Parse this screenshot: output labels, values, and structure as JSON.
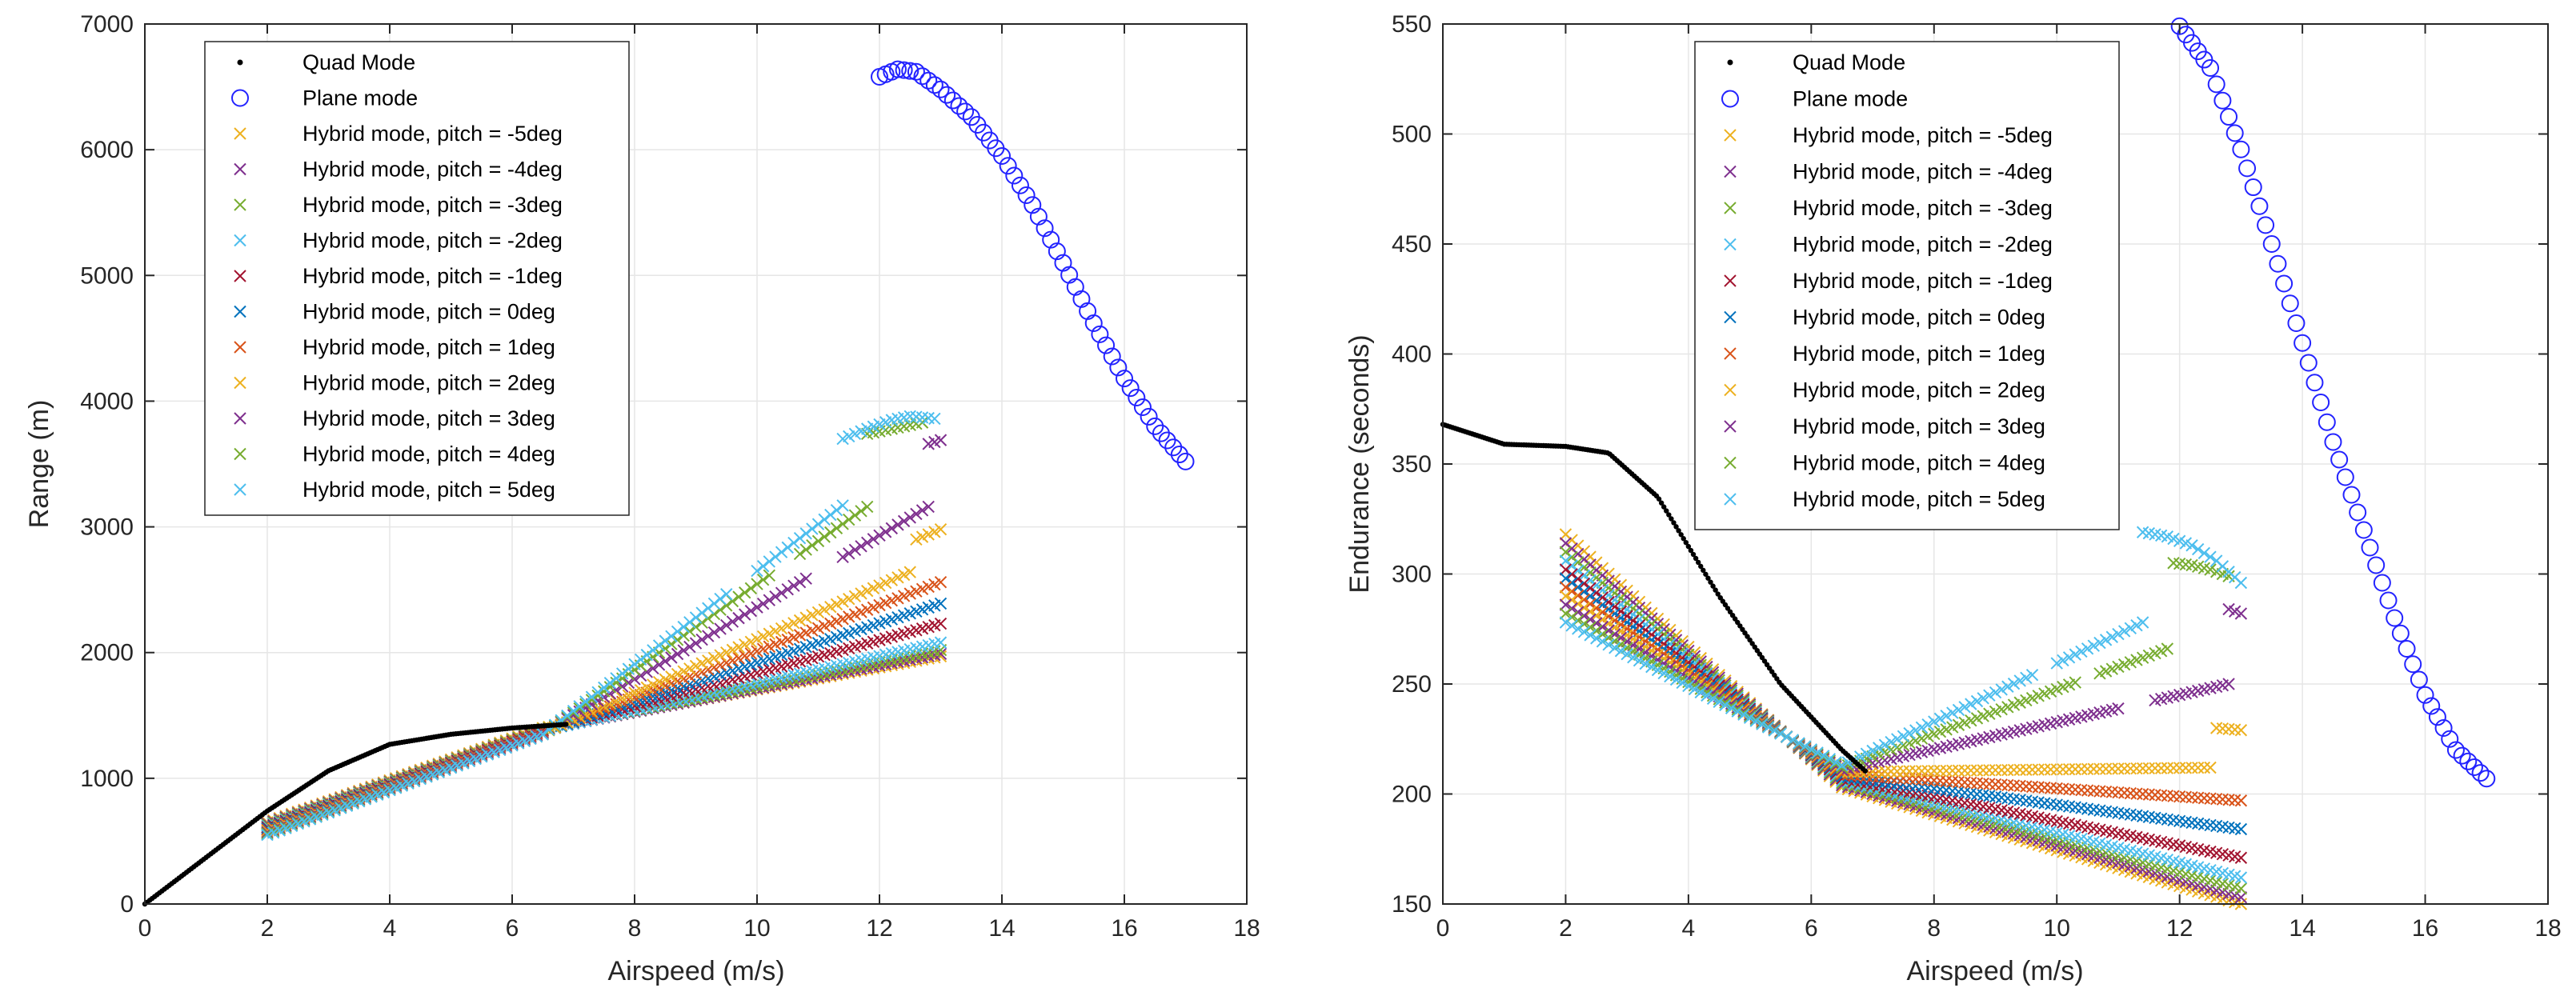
{
  "colors": {
    "quad": "#000000",
    "plane": "#2323ff",
    "pitch": {
      "-5": "#EDB120",
      "-4": "#7E2F8E",
      "-3": "#77AC30",
      "-2": "#4DBEEE",
      "-1": "#A2142F",
      "0": "#0072BD",
      "1": "#D95319",
      "2": "#EDB120",
      "3": "#7E2F8E",
      "4": "#77AC30",
      "5": "#4DBEEE"
    }
  },
  "chart_data": [
    {
      "type": "scatter",
      "xlabel": "Airspeed (m/s)",
      "ylabel": "Range (m)",
      "xlim": [
        0,
        18
      ],
      "ylim": [
        0,
        7000
      ],
      "xticks": [
        "0",
        "2",
        "4",
        "6",
        "8",
        "10",
        "12",
        "14",
        "16",
        "18"
      ],
      "yticks": [
        "0",
        "1000",
        "2000",
        "3000",
        "4000",
        "5000",
        "6000",
        "7000"
      ],
      "grid": true,
      "legend": [
        "Quad Mode",
        "Plane mode",
        "Hybrid mode, pitch = -5deg",
        "Hybrid mode, pitch = -4deg",
        "Hybrid mode, pitch = -3deg",
        "Hybrid mode, pitch = -2deg",
        "Hybrid mode, pitch = -1deg",
        "Hybrid mode, pitch = 0deg",
        "Hybrid mode, pitch = 1deg",
        "Hybrid mode, pitch = 2deg",
        "Hybrid mode, pitch = 3deg",
        "Hybrid mode, pitch = 4deg",
        "Hybrid mode, pitch = 5deg"
      ],
      "legend_position": "top-left",
      "quad_mode": {
        "x": [
          0,
          1,
          2,
          3,
          4,
          5,
          6,
          6.9
        ],
        "y": [
          0,
          370,
          740,
          1060,
          1270,
          1350,
          1400,
          1430
        ]
      },
      "plane_mode": {
        "x": [
          12,
          12.3,
          12.6,
          13,
          13.5,
          14,
          14.5,
          15,
          15.5,
          16,
          16.5,
          17
        ],
        "y": [
          6580,
          6640,
          6620,
          6480,
          6260,
          5950,
          5560,
          5100,
          4620,
          4180,
          3800,
          3520
        ]
      },
      "hybrid": [
        {
          "pitch": -5,
          "x0": 2,
          "y0": 650,
          "y_at_6_5": 1400,
          "x_end": 13,
          "y_end": 1970
        },
        {
          "pitch": -4,
          "x0": 2,
          "y0": 640,
          "y_at_6_5": 1390,
          "x_end": 13,
          "y_end": 1990
        },
        {
          "pitch": -3,
          "x0": 2,
          "y0": 630,
          "y_at_6_5": 1390,
          "x_end": 13,
          "y_end": 2020
        },
        {
          "pitch": -2,
          "x0": 2,
          "y0": 620,
          "y_at_6_5": 1380,
          "x_end": 13,
          "y_end": 2080
        },
        {
          "pitch": -1,
          "x0": 2,
          "y0": 610,
          "y_at_6_5": 1380,
          "x_end": 13,
          "y_end": 2230
        },
        {
          "pitch": 0,
          "x0": 2,
          "y0": 600,
          "y_at_6_5": 1370,
          "x_end": 13,
          "y_end": 2390
        },
        {
          "pitch": 1,
          "x0": 2,
          "y0": 590,
          "y_at_6_5": 1370,
          "x_end": 13,
          "y_end": 2560
        },
        {
          "pitch": 2,
          "x0": 2,
          "y0": 580,
          "y_at_6_5": 1360,
          "x_end": 12.5,
          "y_end": 2640,
          "tail": {
            "x": [
              12.6,
              13
            ],
            "y": [
              2900,
              2980
            ]
          }
        },
        {
          "pitch": 3,
          "x0": 2,
          "y0": 570,
          "y_at_6_5": 1360,
          "x_end": 12.8,
          "y_end": 3160,
          "gap": [
            10.8,
            11.3
          ],
          "tail": {
            "x": [
              12.8,
              13
            ],
            "y": [
              3660,
              3690
            ]
          }
        },
        {
          "pitch": 4,
          "x0": 2,
          "y0": 560,
          "y_at_6_5": 1350,
          "x_end": 11.8,
          "y_end": 3160,
          "gap": [
            10.2,
            10.6
          ],
          "tail": {
            "x": [
              11.8,
              12.1,
              12.4,
              12.7
            ],
            "y": [
              3740,
              3770,
              3800,
              3830
            ]
          }
        },
        {
          "pitch": 5,
          "x0": 2,
          "y0": 550,
          "y_at_6_5": 1350,
          "x_end": 11.4,
          "y_end": 3170,
          "gap": [
            9.5,
            9.9
          ],
          "tail": {
            "x": [
              11.4,
              11.8,
              12.2,
              12.5,
              12.9
            ],
            "y": [
              3700,
              3780,
              3850,
              3880,
              3860
            ]
          }
        }
      ]
    },
    {
      "type": "scatter",
      "xlabel": "Airspeed (m/s)",
      "ylabel": "Endurance (seconds)",
      "xlim": [
        0,
        18
      ],
      "ylim": [
        150,
        550
      ],
      "xticks": [
        "0",
        "2",
        "4",
        "6",
        "8",
        "10",
        "12",
        "14",
        "16",
        "18"
      ],
      "yticks": [
        "150",
        "200",
        "250",
        "300",
        "350",
        "400",
        "450",
        "500",
        "550"
      ],
      "grid": true,
      "legend": [
        "Quad Mode",
        "Plane mode",
        "Hybrid mode, pitch = -5deg",
        "Hybrid mode, pitch = -4deg",
        "Hybrid mode, pitch = -3deg",
        "Hybrid mode, pitch = -2deg",
        "Hybrid mode, pitch = -1deg",
        "Hybrid mode, pitch = 0deg",
        "Hybrid mode, pitch = 1deg",
        "Hybrid mode, pitch = 2deg",
        "Hybrid mode, pitch = 3deg",
        "Hybrid mode, pitch = 4deg",
        "Hybrid mode, pitch = 5deg"
      ],
      "legend_position": "top-center",
      "quad_mode": {
        "x": [
          0,
          1,
          2,
          2.7,
          3.5,
          4.5,
          5.5,
          6.5,
          6.9
        ],
        "y": [
          368,
          359,
          358,
          355,
          335,
          290,
          250,
          220,
          210
        ]
      },
      "plane_mode": {
        "x": [
          12,
          12.5,
          13,
          13.5,
          14,
          14.5,
          15,
          15.5,
          16,
          16.5,
          17
        ],
        "y": [
          549,
          530,
          493,
          450,
          405,
          360,
          320,
          280,
          245,
          220,
          207
        ]
      },
      "hybrid": [
        {
          "pitch": -5,
          "x0": 2,
          "y0": 318,
          "y_at_6_5": 203,
          "x_end": 13,
          "y_end": 150
        },
        {
          "pitch": -4,
          "x0": 2,
          "y0": 314,
          "y_at_6_5": 204,
          "x_end": 13,
          "y_end": 153
        },
        {
          "pitch": -3,
          "x0": 2,
          "y0": 310,
          "y_at_6_5": 205,
          "x_end": 13,
          "y_end": 157
        },
        {
          "pitch": -2,
          "x0": 2,
          "y0": 306,
          "y_at_6_5": 206,
          "x_end": 13,
          "y_end": 162
        },
        {
          "pitch": -1,
          "x0": 2,
          "y0": 302,
          "y_at_6_5": 207,
          "x_end": 13,
          "y_end": 171
        },
        {
          "pitch": 0,
          "x0": 2,
          "y0": 298,
          "y_at_6_5": 208,
          "x_end": 13,
          "y_end": 184
        },
        {
          "pitch": 1,
          "x0": 2,
          "y0": 294,
          "y_at_6_5": 209,
          "x_end": 13,
          "y_end": 197
        },
        {
          "pitch": 2,
          "x0": 2,
          "y0": 290,
          "y_at_6_5": 210,
          "x_end": 12.5,
          "y_end": 212,
          "tail": {
            "x": [
              12.6,
              13
            ],
            "y": [
              230,
              229
            ]
          }
        },
        {
          "pitch": 3,
          "x0": 2,
          "y0": 286,
          "y_at_6_5": 211,
          "x_end": 12.8,
          "y_end": 250,
          "gap": [
            11.0,
            11.5
          ],
          "tail": {
            "x": [
              12.8,
              13
            ],
            "y": [
              284,
              282
            ]
          }
        },
        {
          "pitch": 4,
          "x0": 2,
          "y0": 282,
          "y_at_6_5": 212,
          "x_end": 11.8,
          "y_end": 266,
          "gap": [
            10.3,
            10.6
          ],
          "tail": {
            "x": [
              11.9,
              12.2,
              12.5,
              12.8
            ],
            "y": [
              305,
              304,
              302,
              299
            ]
          }
        },
        {
          "pitch": 5,
          "x0": 2,
          "y0": 278,
          "y_at_6_5": 213,
          "x_end": 11.4,
          "y_end": 278,
          "gap": [
            9.6,
            9.9
          ],
          "tail": {
            "x": [
              11.4,
              11.8,
              12.2,
              12.6,
              13
            ],
            "y": [
              319,
              317,
              313,
              306,
              296
            ]
          }
        }
      ]
    }
  ]
}
